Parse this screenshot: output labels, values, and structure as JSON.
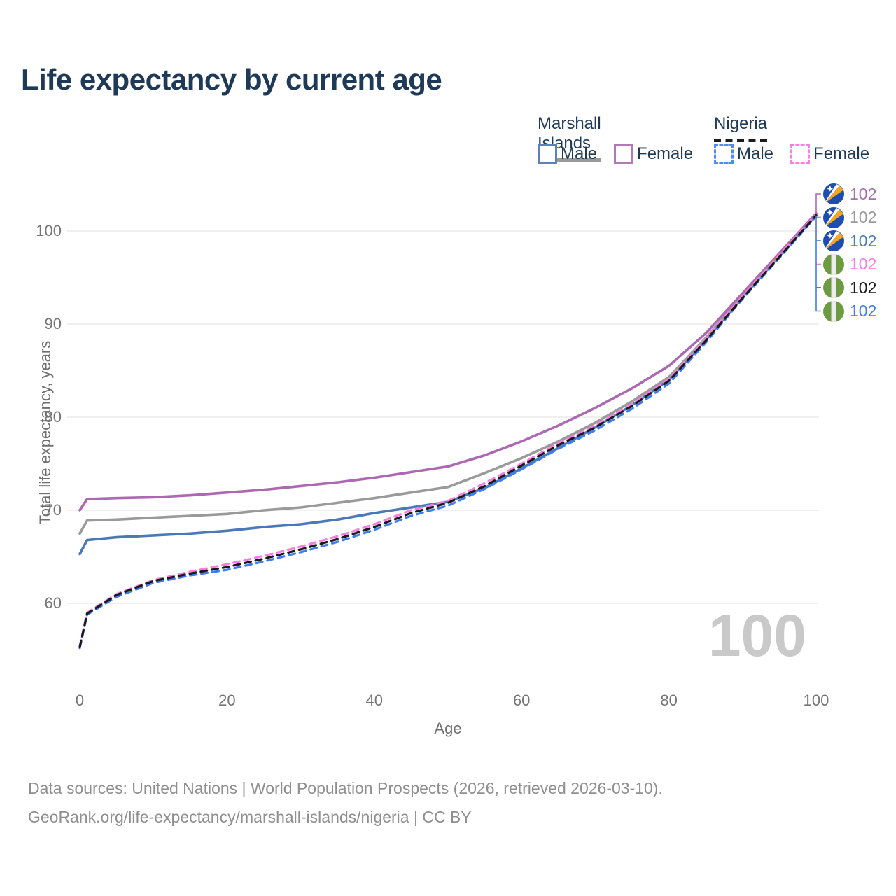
{
  "title": "Life expectancy by current age",
  "watermark": "100",
  "footer": {
    "line1": "Data sources: United Nations | World Population Prospects (2026, retrieved 2026-03-10).",
    "line2": "GeoRank.org/life-expectancy/marshall-islands/nigeria | CC BY"
  },
  "legend": {
    "groups": [
      {
        "label": "Marshall Islands",
        "line_style": "solid",
        "underline_color": "#9a9a9a",
        "items": [
          {
            "label": "Male",
            "color": "#5b82bd",
            "dashed": false
          },
          {
            "label": "Female",
            "color": "#b577b5",
            "dashed": false
          }
        ]
      },
      {
        "label": "Nigeria",
        "line_style": "dashed",
        "underline_color": "#1c1c1c",
        "items": [
          {
            "label": "Male",
            "color": "#4d8cf5",
            "dashed": true
          },
          {
            "label": "Female",
            "color": "#fd7ce5",
            "dashed": true
          }
        ]
      }
    ]
  },
  "end_labels": [
    {
      "flag": "marshall-islands",
      "value": "102",
      "color": "#a86db2"
    },
    {
      "flag": "marshall-islands",
      "value": "102",
      "color": "#9a9a9a"
    },
    {
      "flag": "marshall-islands",
      "value": "102",
      "color": "#4f7ab8"
    },
    {
      "flag": "nigeria",
      "value": "102",
      "color": "#fb7ce0"
    },
    {
      "flag": "nigeria",
      "value": "102",
      "color": "#1c1c1c"
    },
    {
      "flag": "nigeria",
      "value": "102",
      "color": "#3f7cf2"
    }
  ],
  "chart_data": {
    "type": "line",
    "title": "Life expectancy by current age",
    "xlabel": "Age",
    "ylabel": "Total life expectancy, years",
    "xlim": [
      0,
      100
    ],
    "ylim": [
      54,
      104
    ],
    "xticks": [
      0,
      20,
      40,
      60,
      80,
      100
    ],
    "yticks": [
      60,
      70,
      80,
      90,
      100
    ],
    "grid": "horizontal",
    "legend_position": "top-right",
    "x": [
      0,
      1,
      5,
      10,
      15,
      20,
      25,
      30,
      35,
      40,
      45,
      50,
      55,
      60,
      65,
      70,
      75,
      80,
      85,
      90,
      95,
      100
    ],
    "series": [
      {
        "name": "Marshall Islands — Male",
        "country": "Marshall Islands",
        "sex": "Male",
        "color": "#4b79b7",
        "dash": "solid",
        "end_label": "102",
        "values": [
          65.3,
          66.8,
          67.1,
          67.3,
          67.5,
          67.8,
          68.2,
          68.5,
          69.0,
          69.7,
          70.3,
          70.9,
          72.4,
          74.5,
          76.7,
          78.9,
          81.3,
          84.0,
          88.3,
          92.9,
          97.3,
          101.7
        ]
      },
      {
        "name": "Marshall Islands — Both sexes",
        "country": "Marshall Islands",
        "sex": "Both",
        "color": "#9a9a9a",
        "dash": "solid",
        "end_label": "102",
        "values": [
          67.5,
          68.9,
          69.0,
          69.2,
          69.4,
          69.6,
          70.0,
          70.3,
          70.8,
          71.3,
          71.9,
          72.5,
          74.0,
          75.6,
          77.4,
          79.4,
          81.7,
          84.3,
          88.5,
          93.0,
          97.4,
          101.8
        ]
      },
      {
        "name": "Marshall Islands — Female",
        "country": "Marshall Islands",
        "sex": "Female",
        "color": "#ad68b2",
        "dash": "solid",
        "end_label": "102",
        "values": [
          70.0,
          71.2,
          71.3,
          71.4,
          71.6,
          71.9,
          72.2,
          72.6,
          73.0,
          73.5,
          74.1,
          74.7,
          75.9,
          77.4,
          79.1,
          81.0,
          83.1,
          85.5,
          89.0,
          93.3,
          97.6,
          101.9
        ]
      },
      {
        "name": "Nigeria — Male",
        "country": "Nigeria",
        "sex": "Male",
        "color": "#3f7cf2",
        "dash": "dashed",
        "end_label": "102",
        "values": [
          55.2,
          58.8,
          60.7,
          62.2,
          63.0,
          63.6,
          64.5,
          65.5,
          66.6,
          67.9,
          69.4,
          70.5,
          72.3,
          74.4,
          76.6,
          78.6,
          80.9,
          83.6,
          88.0,
          92.7,
          97.1,
          101.6
        ]
      },
      {
        "name": "Nigeria — Female",
        "country": "Nigeria",
        "sex": "Female",
        "color": "#fb7ce0",
        "dash": "dashed",
        "end_label": "102",
        "values": [
          55.4,
          59.0,
          61.0,
          62.5,
          63.4,
          64.2,
          65.1,
          66.1,
          67.2,
          68.5,
          70.0,
          71.0,
          72.9,
          75.0,
          77.2,
          79.1,
          81.4,
          84.1,
          88.4,
          93.0,
          97.4,
          101.8
        ]
      },
      {
        "name": "Nigeria — Both sexes",
        "country": "Nigeria",
        "sex": "Both",
        "color": "#1a1a1a",
        "dash": "dashed",
        "end_label": "102",
        "values": [
          55.3,
          58.9,
          60.9,
          62.4,
          63.2,
          63.9,
          64.8,
          65.8,
          66.9,
          68.2,
          69.7,
          70.8,
          72.6,
          74.8,
          77.0,
          78.9,
          81.2,
          83.9,
          88.2,
          92.8,
          97.2,
          101.7
        ]
      }
    ]
  }
}
